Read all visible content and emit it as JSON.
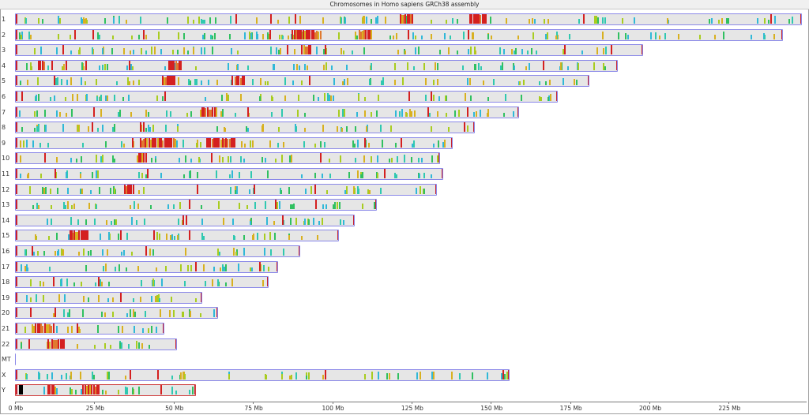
{
  "window": {
    "title": "Chromosomes in Homo sapiens GRCh38 assembly"
  },
  "colors": {
    "bar_fill": "#e6e6e6",
    "bar_border": "#8a88e8",
    "y_border": "#d04040",
    "feature_palette": [
      "#d42020",
      "#e07a30",
      "#d8b020",
      "#a8cc20",
      "#30c060",
      "#30c8b0",
      "#30b8d8",
      "#000000"
    ]
  },
  "chart_data": {
    "type": "bar",
    "title": "Chromosomes in Homo sapiens GRCh38 assembly",
    "orientation": "horizontal",
    "xlabel": "",
    "ylabel": "",
    "x_unit": "Mb",
    "xlim": [
      0,
      250
    ],
    "x_ticks": [
      0,
      25,
      50,
      75,
      100,
      125,
      150,
      175,
      200,
      225
    ],
    "x_tick_labels": [
      "0 Mb",
      "25 Mb",
      "50 Mb",
      "75 Mb",
      "100 Mb",
      "125 Mb",
      "150 Mb",
      "175 Mb",
      "200 Mb",
      "225 Mb"
    ],
    "grid": false,
    "legend": null,
    "categories": [
      "1",
      "2",
      "3",
      "4",
      "5",
      "6",
      "7",
      "8",
      "9",
      "10",
      "11",
      "12",
      "13",
      "14",
      "15",
      "16",
      "17",
      "18",
      "19",
      "20",
      "21",
      "22",
      "MT",
      "X",
      "Y"
    ],
    "values": [
      248,
      242,
      198,
      190,
      181,
      171,
      159,
      145,
      138,
      134,
      135,
      133,
      114,
      107,
      102,
      90,
      83,
      80,
      59,
      64,
      47,
      51,
      0.016,
      156,
      57
    ],
    "series": [
      {
        "name": "Chromosome length (Mb)",
        "values": [
          248,
          242,
          198,
          190,
          181,
          171,
          159,
          145,
          138,
          134,
          135,
          133,
          114,
          107,
          102,
          90,
          83,
          80,
          59,
          64,
          47,
          51,
          0.016,
          156,
          57
        ]
      }
    ],
    "dense_feature_regions_mb": {
      "1": [
        [
          121,
          125
        ],
        [
          143,
          148
        ]
      ],
      "2": [
        [
          87,
          96
        ],
        [
          108,
          112
        ]
      ],
      "3": [
        [
          90,
          93
        ]
      ],
      "4": [
        [
          7,
          9
        ],
        [
          48,
          52
        ]
      ],
      "5": [
        [
          46,
          50
        ],
        [
          69,
          72
        ]
      ],
      "7": [
        [
          58,
          63
        ]
      ],
      "9": [
        [
          39,
          50
        ],
        [
          60,
          69
        ]
      ],
      "10": [
        [
          38,
          41
        ]
      ],
      "12": [
        [
          34,
          37
        ]
      ],
      "15": [
        [
          17,
          23
        ]
      ],
      "21": [
        [
          5,
          12
        ]
      ],
      "22": [
        [
          10,
          15
        ]
      ],
      "Y": [
        [
          10,
          12
        ],
        [
          21,
          26
        ]
      ]
    }
  },
  "axis": {
    "ticks": [
      {
        "mb": 0,
        "label": "0 Mb"
      },
      {
        "mb": 25,
        "label": "25 Mb"
      },
      {
        "mb": 50,
        "label": "50 Mb"
      },
      {
        "mb": 75,
        "label": "75 Mb"
      },
      {
        "mb": 100,
        "label": "100 Mb"
      },
      {
        "mb": 125,
        "label": "125 Mb"
      },
      {
        "mb": 150,
        "label": "150 Mb"
      },
      {
        "mb": 175,
        "label": "175 Mb"
      },
      {
        "mb": 200,
        "label": "200 Mb"
      },
      {
        "mb": 225,
        "label": "225 Mb"
      }
    ]
  }
}
